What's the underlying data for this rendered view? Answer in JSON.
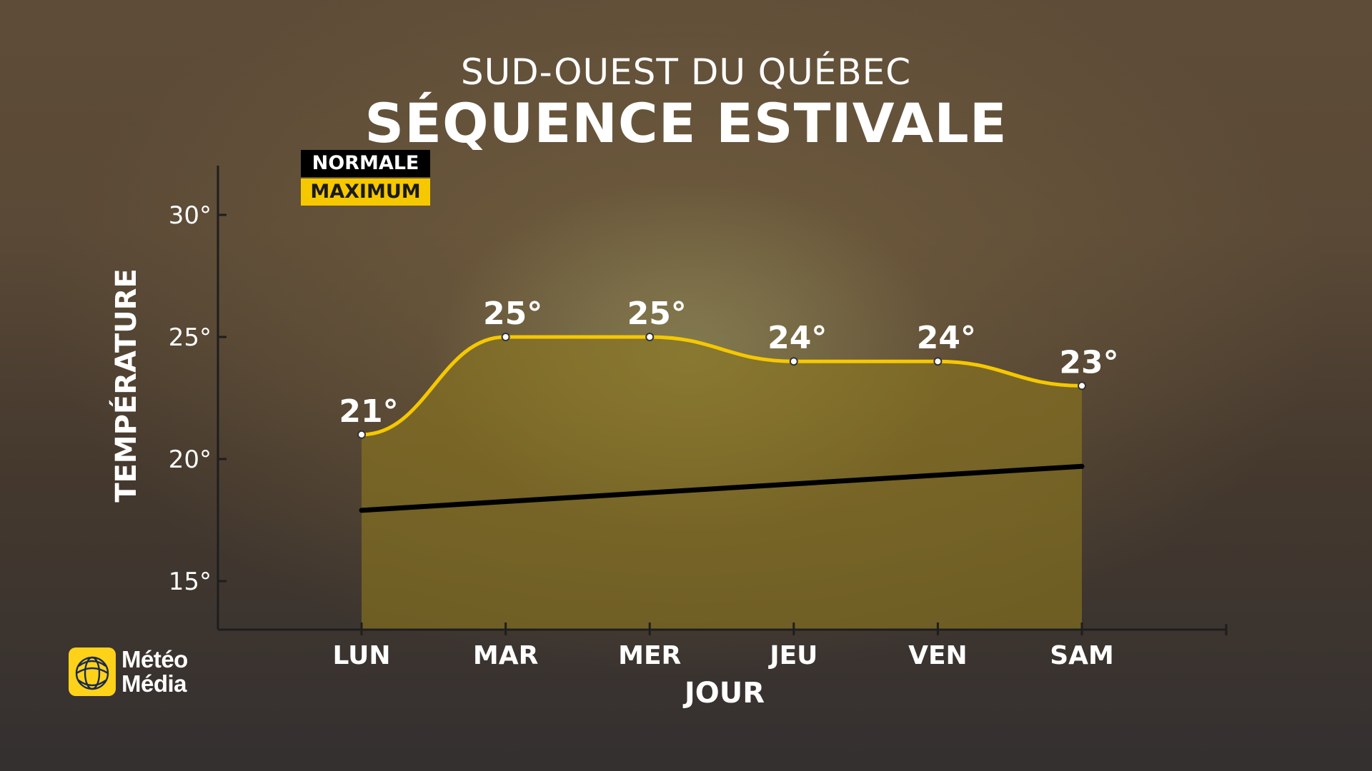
{
  "header": {
    "subtitle": "SUD-OUEST DU QUÉBEC",
    "title": "SÉQUENCE ESTIVALE"
  },
  "legend": [
    {
      "label": "NORMALE",
      "color": "#000000"
    },
    {
      "label": "MAXIMUM",
      "color": "#f5c800"
    }
  ],
  "brand": {
    "line1": "Météo",
    "line2": "Média",
    "accent": "#ffd21a"
  },
  "colors": {
    "maximum": "#f5c800",
    "normal": "#000000",
    "fill": "rgba(140,120,30,0.62)"
  },
  "chart_data": {
    "type": "area",
    "title": "SÉQUENCE ESTIVALE",
    "subtitle": "SUD-OUEST DU QUÉBEC",
    "xlabel": "JOUR",
    "ylabel": "TEMPÉRATURE",
    "categories": [
      "LUN",
      "MAR",
      "MER",
      "JEU",
      "VEN",
      "SAM"
    ],
    "ylim": [
      13,
      32
    ],
    "yticks": [
      15,
      20,
      25,
      30
    ],
    "ytick_labels": [
      "15°",
      "20°",
      "25°",
      "30°"
    ],
    "legend_position": "top-left",
    "grid": false,
    "series": [
      {
        "name": "MAXIMUM",
        "values": [
          21,
          25,
          25,
          24,
          24,
          23
        ],
        "labels": [
          "21°",
          "25°",
          "25°",
          "24°",
          "24°",
          "23°"
        ]
      },
      {
        "name": "NORMALE",
        "values": [
          17.9,
          18.3,
          18.6,
          19.0,
          19.3,
          19.7
        ]
      }
    ]
  }
}
